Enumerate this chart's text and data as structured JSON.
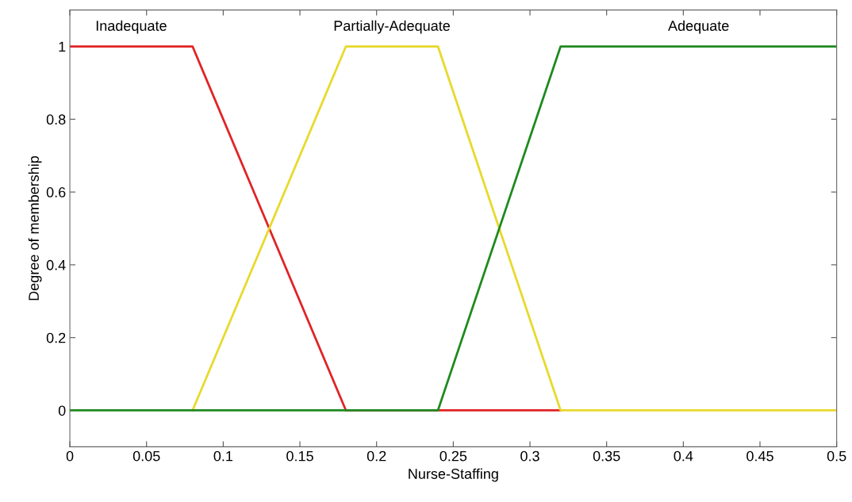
{
  "chart_data": {
    "type": "line",
    "xlabel": "Nurse-Staffing",
    "ylabel": "Degree of membership",
    "xlim": [
      0,
      0.5
    ],
    "ylim": [
      -0.1,
      1.1
    ],
    "xticks": [
      0,
      0.05,
      0.1,
      0.15,
      0.2,
      0.25,
      0.3,
      0.35,
      0.4,
      0.45,
      0.5
    ],
    "yticks": [
      0,
      0.2,
      0.4,
      0.6,
      0.8,
      1
    ],
    "grid": false,
    "legend": false,
    "marker": "none",
    "line_style": "solid",
    "series": [
      {
        "name": "Inadequate",
        "color": "#e02424",
        "x": [
          0,
          0.08,
          0.18,
          0.32
        ],
        "values": [
          1,
          1,
          0,
          0
        ]
      },
      {
        "name": "Partially-Adequate",
        "color": "#e8d92c",
        "x": [
          0.08,
          0.18,
          0.24,
          0.32,
          0.5
        ],
        "values": [
          0,
          1,
          1,
          0,
          0
        ]
      },
      {
        "name": "Adequate",
        "color": "#1f8a1f",
        "x": [
          0,
          0.24,
          0.32,
          0.5
        ],
        "values": [
          0,
          0,
          1,
          1
        ]
      }
    ]
  }
}
